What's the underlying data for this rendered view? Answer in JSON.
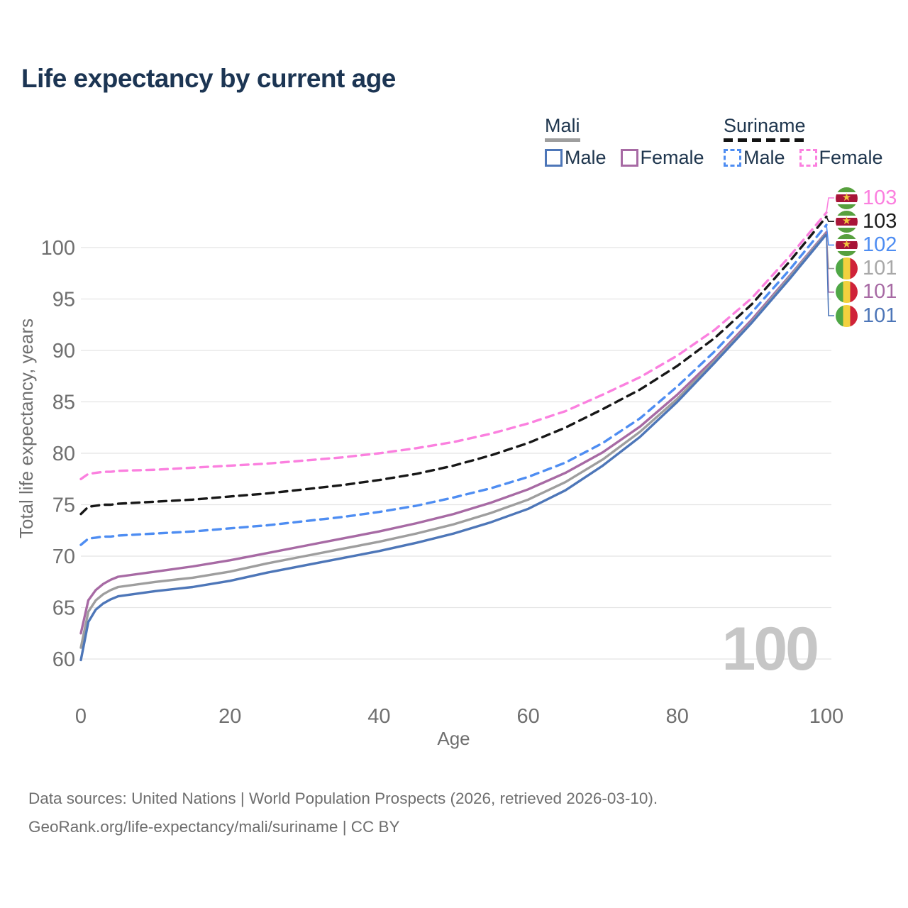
{
  "title": "Life expectancy by current age",
  "watermark_current_age": "100",
  "legend": {
    "mali": {
      "label": "Mali",
      "male": "Male",
      "female": "Female"
    },
    "suriname": {
      "label": "Suriname",
      "male": "Male",
      "female": "Female"
    }
  },
  "footer": {
    "line1": "Data sources: United Nations | World Population Prospects (2026, retrieved 2026-03-10).",
    "line2": "GeoRank.org/life-expectancy/mali/suriname | CC BY"
  },
  "colors": {
    "title_text": "#1c3553",
    "legend_text": "#20374f",
    "axis_text": "#6f6f6f",
    "gridline": "#e4e4e4",
    "watermark": "#c6c6c6",
    "mali_underline": "#9e9e9e",
    "suriname_underline": "#141414",
    "mali_male": "#4d76b8",
    "mali_female": "#a76aa4",
    "mali_total": "#9e9e9e",
    "suriname_male": "#4e8df2",
    "suriname_female": "#fb80df",
    "suriname_total": "#171717",
    "label_gray": "#a8a8a8",
    "label_black": "#1c1c1c",
    "flag_mali_green": "#4fa746",
    "flag_mali_yellow": "#f2d13e",
    "flag_mali_red": "#cf2339",
    "flag_suriname_green": "#57a03e",
    "flag_suriname_red": "#a81538",
    "flag_suriname_star": "#f0c93c"
  },
  "chart_data": {
    "type": "line",
    "title": "Life expectancy by current age",
    "xlabel": "Age",
    "ylabel": "Total life expectancy, years",
    "x_ticks": [
      0,
      20,
      40,
      60,
      80,
      100
    ],
    "y_ticks": [
      60,
      65,
      70,
      75,
      80,
      85,
      90,
      95,
      100
    ],
    "xlim": [
      0,
      100
    ],
    "ylim": [
      58,
      104
    ],
    "grid": "horizontal-only",
    "legend_position": "top-right",
    "x": [
      0,
      1,
      2,
      3,
      4,
      5,
      10,
      15,
      20,
      25,
      30,
      35,
      40,
      45,
      50,
      55,
      60,
      65,
      70,
      75,
      80,
      85,
      90,
      95,
      100
    ],
    "series": [
      {
        "key": "suriname_female",
        "name": "Suriname Female",
        "style": "dashed",
        "color": "#fb80df",
        "values": [
          77.5,
          78.0,
          78.1,
          78.2,
          78.2,
          78.3,
          78.4,
          78.6,
          78.8,
          79.0,
          79.3,
          79.6,
          80.0,
          80.5,
          81.1,
          81.9,
          82.9,
          84.1,
          85.7,
          87.4,
          89.5,
          92.0,
          95.1,
          99.1,
          103.4
        ]
      },
      {
        "key": "suriname_total",
        "name": "Suriname",
        "style": "dashed",
        "color": "#171717",
        "values": [
          74.1,
          74.8,
          74.9,
          75.0,
          75.0,
          75.1,
          75.3,
          75.5,
          75.8,
          76.1,
          76.5,
          76.9,
          77.4,
          78.0,
          78.8,
          79.8,
          81.0,
          82.5,
          84.3,
          86.2,
          88.5,
          91.2,
          94.5,
          98.6,
          103.0
        ]
      },
      {
        "key": "suriname_male",
        "name": "Suriname Male",
        "style": "dashed",
        "color": "#4e8df2",
        "values": [
          71.1,
          71.7,
          71.8,
          71.9,
          71.9,
          72.0,
          72.2,
          72.4,
          72.7,
          73.0,
          73.4,
          73.8,
          74.3,
          74.9,
          75.7,
          76.6,
          77.7,
          79.1,
          81.0,
          83.4,
          86.5,
          89.9,
          93.7,
          97.8,
          102.2
        ]
      },
      {
        "key": "mali_female",
        "name": "Mali Female",
        "style": "solid",
        "color": "#a76aa4",
        "values": [
          62.5,
          65.7,
          66.7,
          67.3,
          67.7,
          68.0,
          68.5,
          69.0,
          69.6,
          70.3,
          71.0,
          71.7,
          72.4,
          73.2,
          74.1,
          75.2,
          76.5,
          78.1,
          80.1,
          82.6,
          85.7,
          89.2,
          93.0,
          97.2,
          101.5
        ]
      },
      {
        "key": "mali_total",
        "name": "Mali",
        "style": "solid",
        "color": "#9e9e9e",
        "values": [
          61.1,
          64.6,
          65.7,
          66.3,
          66.7,
          67.0,
          67.5,
          67.9,
          68.5,
          69.3,
          70.0,
          70.7,
          71.4,
          72.2,
          73.1,
          74.2,
          75.5,
          77.2,
          79.4,
          82.1,
          85.3,
          89.0,
          92.8,
          97.1,
          101.4
        ]
      },
      {
        "key": "mali_male",
        "name": "Mali Male",
        "style": "solid",
        "color": "#4d76b8",
        "values": [
          59.9,
          63.6,
          64.8,
          65.4,
          65.8,
          66.1,
          66.6,
          67.0,
          67.6,
          68.4,
          69.1,
          69.8,
          70.5,
          71.3,
          72.2,
          73.3,
          74.6,
          76.4,
          78.8,
          81.6,
          85.0,
          88.8,
          92.7,
          96.9,
          101.3
        ]
      }
    ],
    "end_labels": [
      {
        "text": "103",
        "flag": "suriname",
        "color": "#fb80df",
        "series": "suriname_female"
      },
      {
        "text": "103",
        "flag": "suriname",
        "color": "#1c1c1c",
        "series": "suriname_total"
      },
      {
        "text": "102",
        "flag": "suriname",
        "color": "#4e8df2",
        "series": "suriname_male"
      },
      {
        "text": "101",
        "flag": "mali",
        "color": "#a8a8a8",
        "series": "mali_total"
      },
      {
        "text": "101",
        "flag": "mali",
        "color": "#a76aa4",
        "series": "mali_female"
      },
      {
        "text": "101",
        "flag": "mali",
        "color": "#4d76b8",
        "series": "mali_male"
      }
    ]
  }
}
